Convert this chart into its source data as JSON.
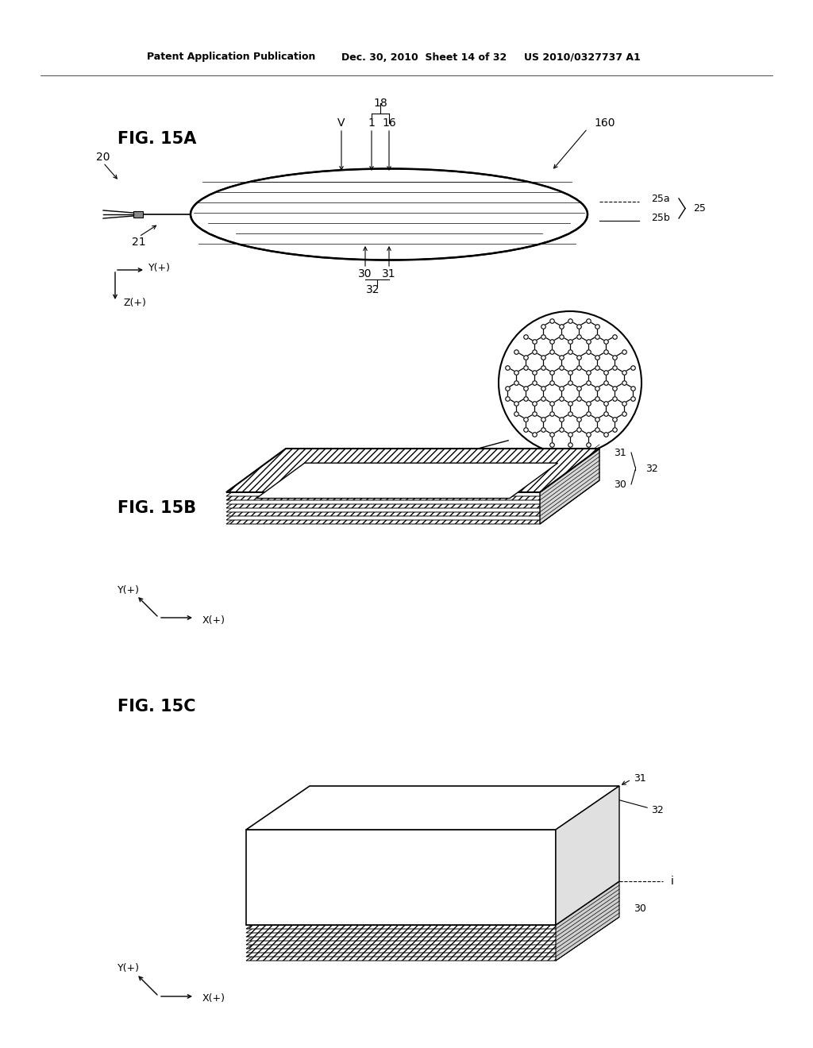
{
  "background_color": "#ffffff",
  "header_left": "Patent Application Publication",
  "header_mid": "Dec. 30, 2010  Sheet 14 of 32",
  "header_right": "US 2010/0327737 A1",
  "fig15a_label": "FIG. 15A",
  "fig15b_label": "FIG. 15B",
  "fig15c_label": "FIG. 15C",
  "line_color": "#000000",
  "text_color": "#000000",
  "gray_light": "#e0e0e0",
  "gray_mid": "#c8c8c8"
}
